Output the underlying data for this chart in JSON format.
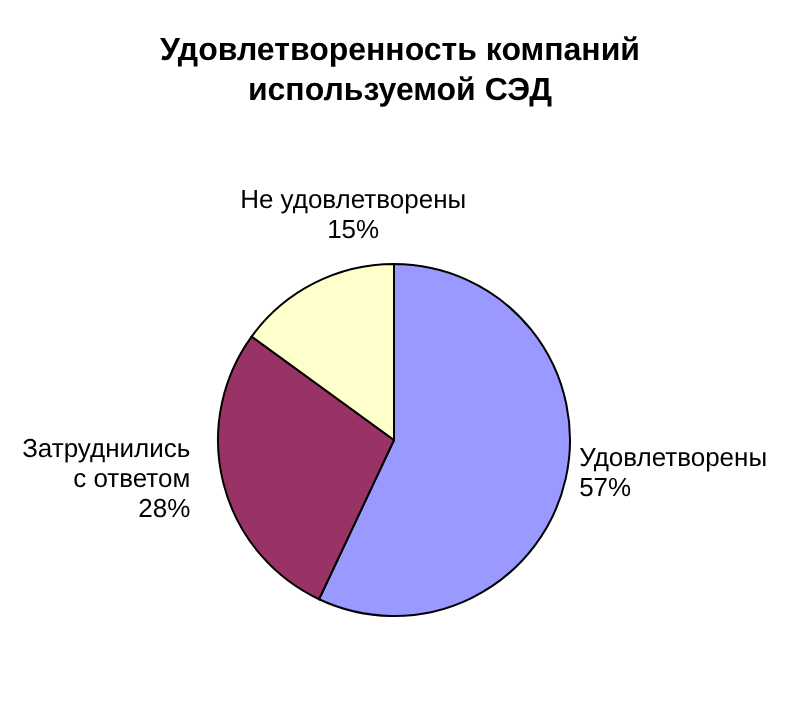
{
  "chart_data": {
    "type": "pie",
    "title": "Удовлетворенность компаний используемой СЭД",
    "categories": [
      "Удовлетворены",
      "Затруднились с ответом",
      "Не удовлетворены"
    ],
    "values": [
      57,
      28,
      15
    ],
    "colors": [
      "#9999ff",
      "#993366",
      "#ffffcc"
    ],
    "value_labels": [
      "57%",
      "28%",
      "15%"
    ],
    "legend": false
  }
}
